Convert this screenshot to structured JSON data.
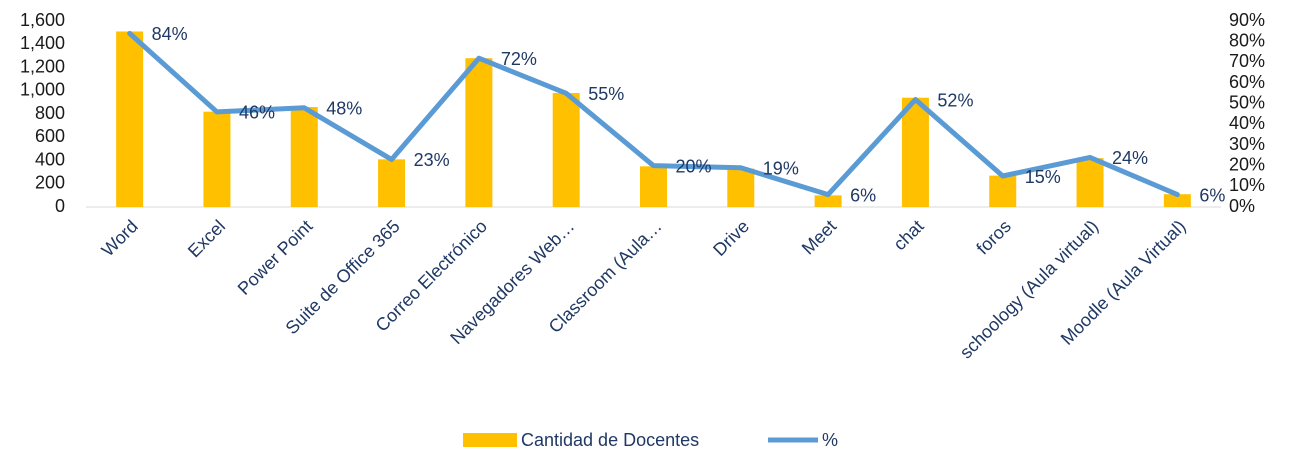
{
  "chart_data": {
    "type": "bar-line",
    "categories": [
      "Word",
      "Excel",
      "Power Point",
      "Suite de Office 365",
      "Correo Electrónico",
      "Navegadores Web…",
      "Classroom (Aula…",
      "Drive",
      "Meet",
      "chat",
      "foros",
      "schoology (Aula virtual)",
      "Moodle (Aula Virtual)"
    ],
    "series": [
      {
        "name": "Cantidad de Docentes",
        "color": "#ffc000",
        "type": "bar",
        "values": [
          1510,
          820,
          860,
          410,
          1280,
          980,
          350,
          330,
          100,
          940,
          270,
          420,
          110
        ]
      },
      {
        "name": "%",
        "color": "#5b9bd5",
        "type": "line",
        "axis": "y2",
        "values": [
          84,
          46,
          48,
          23,
          72,
          55,
          20,
          19,
          6,
          52,
          15,
          24,
          6
        ],
        "value_labels": [
          "84%",
          "46%",
          "48%",
          "23%",
          "72%",
          "55%",
          "20%",
          "19%",
          "6%",
          "52%",
          "15%",
          "24%",
          "6%"
        ]
      }
    ],
    "ylim": [
      0,
      1600
    ],
    "yticks": [
      0,
      200,
      400,
      600,
      800,
      {
        "value": 1000,
        "label": "1,000"
      },
      {
        "value": 1200,
        "label": "1,200"
      },
      {
        "value": 1400,
        "label": "1,400"
      },
      {
        "value": 1600,
        "label": "1,600"
      }
    ],
    "y2lim": [
      0,
      90
    ],
    "y2ticks": [
      {
        "value": 0,
        "label": "0%"
      },
      {
        "value": 10,
        "label": "10%"
      },
      {
        "value": 20,
        "label": "20%"
      },
      {
        "value": 30,
        "label": "30%"
      },
      {
        "value": 40,
        "label": "40%"
      },
      {
        "value": 50,
        "label": "50%"
      },
      {
        "value": 60,
        "label": "60%"
      },
      {
        "value": 70,
        "label": "70%"
      },
      {
        "value": 80,
        "label": "80%"
      },
      {
        "value": 90,
        "label": "90%"
      }
    ],
    "legend": "bottom"
  }
}
